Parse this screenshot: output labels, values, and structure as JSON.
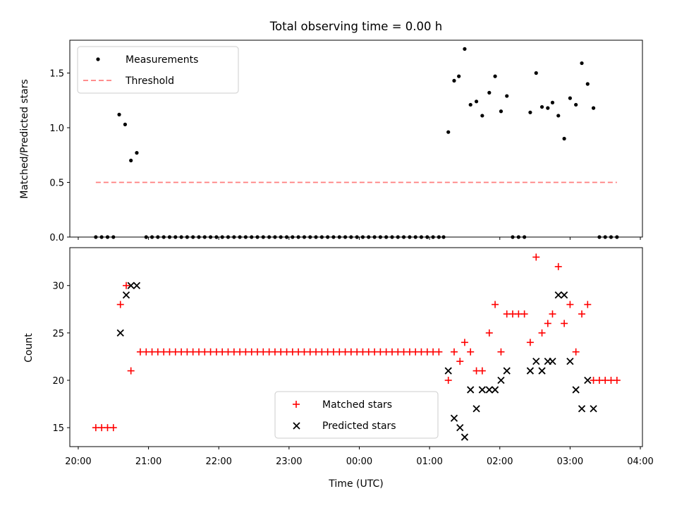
{
  "chart_data": [
    {
      "type": "scatter",
      "title": "Total observing time = 0.00 h",
      "xlabel": "",
      "ylabel": "Matched/Predicted stars",
      "ylim": [
        0,
        1.8
      ],
      "yticks": [
        "0.0",
        "0.5",
        "1.0",
        "1.5"
      ],
      "legend": "top-left",
      "series": [
        {
          "name": "Measurements",
          "kind": "points",
          "color": "#000000",
          "x_hours": [
            20.25,
            20.333,
            20.417,
            20.5,
            20.583,
            20.667,
            20.75,
            20.833,
            20.967,
            21.05,
            21.133,
            21.217,
            21.3,
            21.383,
            21.467,
            21.55,
            21.633,
            21.717,
            21.8,
            21.883,
            21.967,
            22.05,
            22.133,
            22.217,
            22.3,
            22.383,
            22.467,
            22.55,
            22.633,
            22.717,
            22.8,
            22.883,
            22.967,
            23.05,
            23.133,
            23.217,
            23.3,
            23.383,
            23.467,
            23.55,
            23.633,
            23.717,
            23.8,
            23.883,
            23.967,
            24.05,
            24.133,
            24.217,
            24.3,
            24.383,
            24.467,
            24.55,
            24.633,
            24.717,
            24.8,
            24.883,
            24.967,
            25.05,
            25.133,
            25.2,
            25.267,
            25.35,
            25.417,
            25.5,
            25.583,
            25.667,
            25.75,
            25.85,
            25.933,
            26.017,
            26.1,
            26.183,
            26.267,
            26.35,
            26.433,
            26.517,
            26.6,
            26.683,
            26.75,
            26.833,
            26.917,
            27.0,
            27.083,
            27.167,
            27.25,
            27.333,
            27.417,
            27.5,
            27.583,
            27.667
          ],
          "y": [
            0,
            0,
            0,
            0,
            1.12,
            1.03,
            0.7,
            0.77,
            0,
            0,
            0,
            0,
            0,
            0,
            0,
            0,
            0,
            0,
            0,
            0,
            0,
            0,
            0,
            0,
            0,
            0,
            0,
            0,
            0,
            0,
            0,
            0,
            0,
            0,
            0,
            0,
            0,
            0,
            0,
            0,
            0,
            0,
            0,
            0,
            0,
            0,
            0,
            0,
            0,
            0,
            0,
            0,
            0,
            0,
            0,
            0,
            0,
            0,
            0,
            0,
            0.96,
            1.43,
            1.47,
            1.72,
            1.21,
            1.24,
            1.11,
            1.32,
            1.47,
            1.15,
            1.29,
            0,
            0,
            0,
            1.14,
            1.5,
            1.19,
            1.18,
            1.23,
            1.11,
            0.9,
            1.27,
            1.21,
            1.59,
            1.4,
            1.18,
            0,
            0,
            0,
            0
          ]
        },
        {
          "name": "Threshold",
          "kind": "dashed-line",
          "color": "#ff7f7f",
          "x_hours": [
            20.25,
            27.667
          ],
          "y": [
            0.5,
            0.5
          ]
        }
      ]
    },
    {
      "type": "scatter",
      "title": "",
      "xlabel": "Time (UTC)",
      "ylabel": "Count",
      "ylim": [
        13,
        34
      ],
      "yticks": [
        "15",
        "20",
        "25",
        "30"
      ],
      "x_range_hours": [
        19.88,
        28.03
      ],
      "x_tick_hours": [
        20,
        21,
        22,
        23,
        24,
        25,
        26,
        27,
        28
      ],
      "x_tick_labels": [
        "20:00",
        "21:00",
        "22:00",
        "23:00",
        "00:00",
        "01:00",
        "02:00",
        "03:00",
        "04:00"
      ],
      "legend": "lower-center",
      "series": [
        {
          "name": "Matched stars",
          "kind": "plus",
          "color": "#ff0000",
          "x_hours": [
            20.25,
            20.333,
            20.417,
            20.5,
            20.6,
            20.683,
            20.75,
            20.883,
            20.967,
            21.05,
            21.133,
            21.217,
            21.3,
            21.383,
            21.467,
            21.55,
            21.633,
            21.717,
            21.8,
            21.883,
            21.967,
            22.05,
            22.133,
            22.217,
            22.3,
            22.383,
            22.467,
            22.55,
            22.633,
            22.717,
            22.8,
            22.883,
            22.967,
            23.05,
            23.133,
            23.217,
            23.3,
            23.383,
            23.467,
            23.55,
            23.633,
            23.717,
            23.8,
            23.883,
            23.967,
            24.05,
            24.133,
            24.217,
            24.3,
            24.383,
            24.467,
            24.55,
            24.633,
            24.717,
            24.8,
            24.883,
            24.967,
            25.05,
            25.133,
            25.267,
            25.35,
            25.433,
            25.5,
            25.583,
            25.667,
            25.75,
            25.85,
            25.933,
            26.017,
            26.1,
            26.183,
            26.267,
            26.35,
            26.433,
            26.517,
            26.6,
            26.683,
            26.75,
            26.833,
            26.917,
            27.0,
            27.083,
            27.167,
            27.25,
            27.333,
            27.417,
            27.5,
            27.583,
            27.667
          ],
          "y": [
            15,
            15,
            15,
            15,
            28,
            30,
            21,
            23,
            23,
            23,
            23,
            23,
            23,
            23,
            23,
            23,
            23,
            23,
            23,
            23,
            23,
            23,
            23,
            23,
            23,
            23,
            23,
            23,
            23,
            23,
            23,
            23,
            23,
            23,
            23,
            23,
            23,
            23,
            23,
            23,
            23,
            23,
            23,
            23,
            23,
            23,
            23,
            23,
            23,
            23,
            23,
            23,
            23,
            23,
            23,
            23,
            23,
            23,
            23,
            20,
            23,
            22,
            24,
            23,
            21,
            21,
            25,
            28,
            23,
            27,
            27,
            27,
            27,
            24,
            33,
            25,
            26,
            27,
            32,
            26,
            28,
            23,
            27,
            28,
            20,
            20,
            20,
            20,
            20
          ]
        },
        {
          "name": "Predicted stars",
          "kind": "cross",
          "color": "#000000",
          "x_hours": [
            20.6,
            20.683,
            20.75,
            20.833,
            25.267,
            25.35,
            25.433,
            25.5,
            25.583,
            25.667,
            25.75,
            25.85,
            25.933,
            26.017,
            26.1,
            26.433,
            26.517,
            26.6,
            26.683,
            26.75,
            26.833,
            26.917,
            27.0,
            27.083,
            27.167,
            27.25,
            27.333
          ],
          "y": [
            25,
            29,
            30,
            30,
            21,
            16,
            15,
            14,
            19,
            17,
            19,
            19,
            19,
            20,
            21,
            21,
            22,
            21,
            22,
            22,
            29,
            29,
            22,
            19,
            17,
            20,
            17
          ]
        }
      ]
    }
  ]
}
